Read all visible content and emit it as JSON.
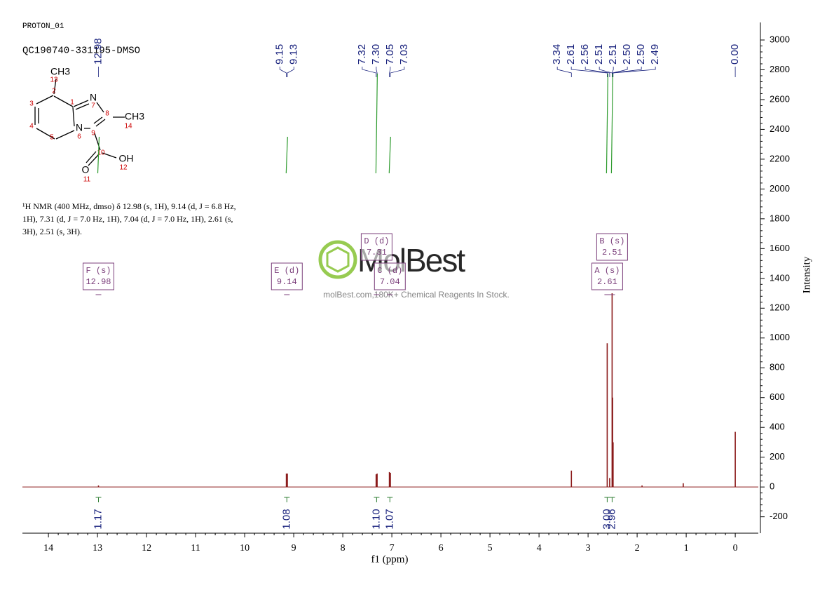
{
  "header": {
    "experiment": "PROTON_01",
    "sample": "QC190740-331195-DMSO"
  },
  "structure": {
    "atoms": [
      "CH3",
      "N",
      "N",
      "CH3",
      "OH",
      "O"
    ],
    "numbers": [
      "13",
      "2",
      "3",
      "4",
      "5",
      "6",
      "1",
      "7",
      "8",
      "9",
      "14",
      "10",
      "12",
      "11"
    ]
  },
  "description": [
    "¹H NMR (400 MHz, dmso) δ 12.98 (s, 1H), 9.14 (d, J = 6.8 Hz,",
    "1H), 7.31 (d, J = 7.0 Hz, 1H), 7.04 (d, J = 7.0 Hz, 1H), 2.61 (s,",
    "3H), 2.51 (s, 3H)."
  ],
  "watermark": {
    "logo": "MolBest",
    "tagline": "molBest.com,180K+ Chemical Reagents In Stock."
  },
  "chart_data": {
    "type": "spectrum",
    "x_label": "f1 (ppm)",
    "y_label": "Intensity",
    "xlim": [
      14.53,
      -0.47
    ],
    "xticks": [
      14,
      13,
      12,
      11,
      10,
      9,
      8,
      7,
      6,
      5,
      4,
      3,
      2,
      1,
      0
    ],
    "ylim": [
      -310,
      3080
    ],
    "yticks": [
      -200,
      0,
      200,
      400,
      600,
      800,
      1000,
      1200,
      1400,
      1600,
      1800,
      2000,
      2200,
      2400,
      2600,
      2800,
      3000
    ],
    "color": "#8b1a1a",
    "x": [
      12.98,
      9.15,
      9.13,
      7.32,
      7.3,
      7.05,
      7.03,
      3.34,
      2.61,
      2.56,
      2.51,
      2.5,
      2.49,
      1.9,
      1.06,
      0
    ],
    "values": [
      10,
      90,
      90,
      85,
      90,
      100,
      95,
      110,
      965,
      60,
      1300,
      600,
      300,
      10,
      25,
      370
    ],
    "peak_labels": [
      12.98,
      9.15,
      9.13,
      7.32,
      {
        "value": 7.3,
        "label": "7.30"
      },
      7.05,
      7.03,
      3.34,
      2.61,
      2.56,
      2.51,
      2.51,
      {
        "value": 2.5,
        "label": "2.50"
      },
      {
        "value": 2.5,
        "label": "2.50"
      },
      2.49,
      {
        "value": 0,
        "label": "0.00"
      }
    ],
    "integrals": {
      "x": [
        12.98,
        9.14,
        7.31,
        7.04,
        2.61,
        2.51
      ],
      "values": [
        1.17,
        1.08,
        1.1,
        1.07,
        3,
        2.96
      ],
      "value_labels": [
        "1.17",
        "1.08",
        "1.10",
        "1.07",
        "3.00",
        "2.96"
      ]
    },
    "multiplets": [
      {
        "label": "F (s)",
        "shift": 12.98
      },
      {
        "label": "E (d)",
        "shift": 9.14
      },
      {
        "label": "D (d)",
        "shift": 7.31
      },
      {
        "label": "C (d)",
        "shift": 7.04
      },
      {
        "label": "B (s)",
        "shift": 2.51
      },
      {
        "label": "A (s)",
        "shift": 2.61
      }
    ]
  }
}
